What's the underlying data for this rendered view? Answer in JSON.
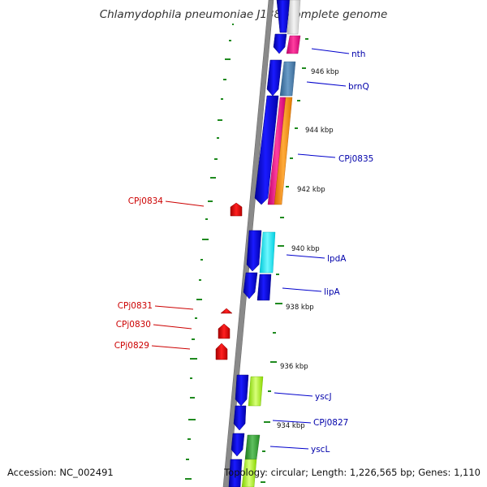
{
  "title": "Chlamydophila pneumoniae J138, complete genome",
  "footer": {
    "accession": "Accession: NC_002491",
    "topology": "Topology: circular; Length: 1,226,565 bp; Genes: 1,110"
  },
  "colors": {
    "forward_gene": "#0000ee",
    "reverse_gene": "#ee0000",
    "backbone": "#888888",
    "gc_ticks": "#1f8a1f",
    "forward_label": "#0000aa",
    "reverse_label": "#cc0000"
  },
  "kbp_ticks": [
    "946 kbp",
    "944 kbp",
    "942 kbp",
    "940 kbp",
    "938 kbp",
    "936 kbp",
    "934 kbp"
  ],
  "forward_genes": [
    "nth",
    "brnQ",
    "CPj0835",
    "lpdA",
    "lipA",
    "yscJ",
    "CPj0827",
    "yscL"
  ],
  "reverse_genes": [
    "CPj0834",
    "CPj0831",
    "CPj0830",
    "CPj0829"
  ]
}
